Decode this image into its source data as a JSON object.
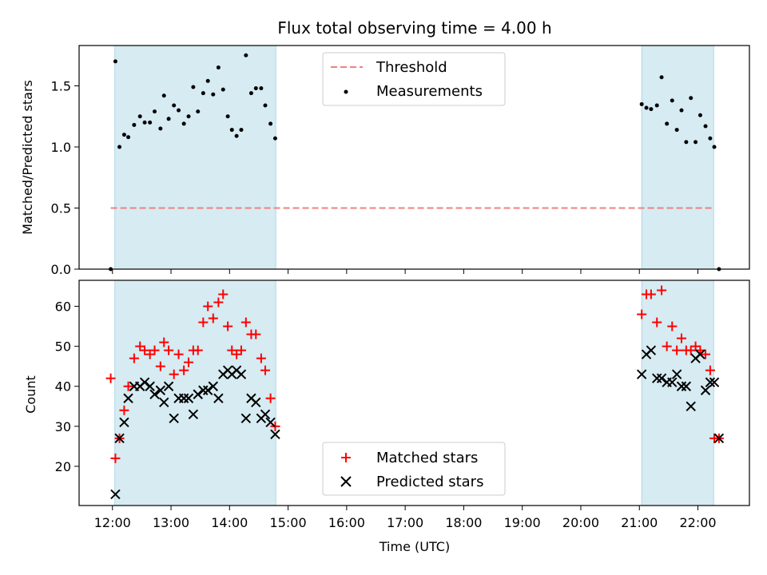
{
  "chart_data": [
    {
      "type": "scatter",
      "title": "Flux total observing time = 4.00 h",
      "ylabel": "Matched/Predicted stars",
      "ylim": [
        0,
        1.83
      ],
      "yticks": [
        "0.0",
        "0.5",
        "1.0",
        "1.5"
      ],
      "ytick_values": [
        0.0,
        0.5,
        1.0,
        1.5
      ],
      "shaded_spans": [
        [
          12.04,
          14.79
        ],
        [
          21.04,
          22.27
        ]
      ],
      "threshold": {
        "name": "Threshold",
        "value": 0.5,
        "x_range": [
          11.97,
          22.27
        ],
        "color": "#f08080"
      },
      "series": [
        {
          "name": "Measurements",
          "color": "#000000",
          "points": [
            [
              11.97,
              0.0
            ],
            [
              12.05,
              1.7
            ],
            [
              12.12,
              1.0
            ],
            [
              12.2,
              1.1
            ],
            [
              12.27,
              1.08
            ],
            [
              12.37,
              1.18
            ],
            [
              12.47,
              1.25
            ],
            [
              12.55,
              1.2
            ],
            [
              12.64,
              1.2
            ],
            [
              12.72,
              1.29
            ],
            [
              12.82,
              1.15
            ],
            [
              12.88,
              1.42
            ],
            [
              12.96,
              1.23
            ],
            [
              13.05,
              1.34
            ],
            [
              13.13,
              1.3
            ],
            [
              13.22,
              1.19
            ],
            [
              13.3,
              1.25
            ],
            [
              13.38,
              1.49
            ],
            [
              13.46,
              1.29
            ],
            [
              13.55,
              1.44
            ],
            [
              13.63,
              1.54
            ],
            [
              13.72,
              1.43
            ],
            [
              13.81,
              1.65
            ],
            [
              13.89,
              1.47
            ],
            [
              13.97,
              1.25
            ],
            [
              14.04,
              1.14
            ],
            [
              14.12,
              1.09
            ],
            [
              14.2,
              1.14
            ],
            [
              14.28,
              1.75
            ],
            [
              14.37,
              1.44
            ],
            [
              14.45,
              1.48
            ],
            [
              14.54,
              1.48
            ],
            [
              14.61,
              1.34
            ],
            [
              14.7,
              1.19
            ],
            [
              14.78,
              1.07
            ],
            [
              21.04,
              1.35
            ],
            [
              21.12,
              1.32
            ],
            [
              21.2,
              1.31
            ],
            [
              21.3,
              1.34
            ],
            [
              21.38,
              1.57
            ],
            [
              21.47,
              1.19
            ],
            [
              21.56,
              1.38
            ],
            [
              21.64,
              1.14
            ],
            [
              21.72,
              1.3
            ],
            [
              21.8,
              1.04
            ],
            [
              21.88,
              1.4
            ],
            [
              21.96,
              1.04
            ],
            [
              22.04,
              1.26
            ],
            [
              22.13,
              1.17
            ],
            [
              22.21,
              1.07
            ],
            [
              22.28,
              1.0
            ],
            [
              22.36,
              0.0
            ]
          ]
        }
      ]
    },
    {
      "type": "scatter",
      "xlabel": "Time (UTC)",
      "ylabel": "Count",
      "xlim": [
        11.43,
        22.88
      ],
      "ylim": [
        10.2,
        66.5
      ],
      "xticks": [
        "12:00",
        "13:00",
        "14:00",
        "15:00",
        "16:00",
        "17:00",
        "18:00",
        "19:00",
        "20:00",
        "21:00",
        "22:00"
      ],
      "xtick_values": [
        12,
        13,
        14,
        15,
        16,
        17,
        18,
        19,
        20,
        21,
        22
      ],
      "yticks": [
        "20",
        "30",
        "40",
        "50",
        "60"
      ],
      "ytick_values": [
        20,
        30,
        40,
        50,
        60
      ],
      "shaded_spans": [
        [
          12.04,
          14.79
        ],
        [
          21.04,
          22.27
        ]
      ],
      "series": [
        {
          "name": "Matched stars",
          "color": "#ff0000",
          "marker": "plus",
          "points": [
            [
              11.97,
              42
            ],
            [
              12.05,
              22
            ],
            [
              12.12,
              27
            ],
            [
              12.2,
              34
            ],
            [
              12.27,
              40
            ],
            [
              12.37,
              47
            ],
            [
              12.47,
              50
            ],
            [
              12.55,
              49
            ],
            [
              12.64,
              48
            ],
            [
              12.72,
              49
            ],
            [
              12.82,
              45
            ],
            [
              12.88,
              51
            ],
            [
              12.96,
              49
            ],
            [
              13.05,
              43
            ],
            [
              13.13,
              48
            ],
            [
              13.22,
              44
            ],
            [
              13.3,
              46
            ],
            [
              13.38,
              49
            ],
            [
              13.46,
              49
            ],
            [
              13.55,
              56
            ],
            [
              13.63,
              60
            ],
            [
              13.72,
              57
            ],
            [
              13.81,
              61
            ],
            [
              13.89,
              63
            ],
            [
              13.97,
              55
            ],
            [
              14.04,
              49
            ],
            [
              14.12,
              48
            ],
            [
              14.2,
              49
            ],
            [
              14.28,
              56
            ],
            [
              14.37,
              53
            ],
            [
              14.45,
              53
            ],
            [
              14.54,
              47
            ],
            [
              14.61,
              44
            ],
            [
              14.7,
              37
            ],
            [
              14.78,
              30
            ],
            [
              21.04,
              58
            ],
            [
              21.12,
              63
            ],
            [
              21.2,
              63
            ],
            [
              21.3,
              56
            ],
            [
              21.38,
              64
            ],
            [
              21.47,
              50
            ],
            [
              21.56,
              55
            ],
            [
              21.64,
              49
            ],
            [
              21.72,
              52
            ],
            [
              21.8,
              49
            ],
            [
              21.88,
              49
            ],
            [
              21.96,
              50
            ],
            [
              22.04,
              49
            ],
            [
              22.13,
              48
            ],
            [
              22.21,
              44
            ],
            [
              22.28,
              27
            ],
            [
              22.36,
              27
            ]
          ]
        },
        {
          "name": "Predicted stars",
          "color": "#000000",
          "marker": "x",
          "points": [
            [
              12.05,
              13
            ],
            [
              12.12,
              27
            ],
            [
              12.2,
              31
            ],
            [
              12.27,
              37
            ],
            [
              12.37,
              40
            ],
            [
              12.47,
              40
            ],
            [
              12.55,
              41
            ],
            [
              12.64,
              40
            ],
            [
              12.72,
              38
            ],
            [
              12.82,
              39
            ],
            [
              12.88,
              36
            ],
            [
              12.96,
              40
            ],
            [
              13.05,
              32
            ],
            [
              13.13,
              37
            ],
            [
              13.22,
              37
            ],
            [
              13.3,
              37
            ],
            [
              13.38,
              33
            ],
            [
              13.46,
              38
            ],
            [
              13.55,
              39
            ],
            [
              13.63,
              39
            ],
            [
              13.72,
              40
            ],
            [
              13.81,
              37
            ],
            [
              13.89,
              43
            ],
            [
              13.97,
              44
            ],
            [
              14.04,
              43
            ],
            [
              14.12,
              44
            ],
            [
              14.2,
              43
            ],
            [
              14.28,
              32
            ],
            [
              14.37,
              37
            ],
            [
              14.45,
              36
            ],
            [
              14.54,
              32
            ],
            [
              14.61,
              33
            ],
            [
              14.7,
              31
            ],
            [
              14.78,
              28
            ],
            [
              21.04,
              43
            ],
            [
              21.12,
              48
            ],
            [
              21.2,
              49
            ],
            [
              21.3,
              42
            ],
            [
              21.38,
              42
            ],
            [
              21.47,
              41
            ],
            [
              21.56,
              41
            ],
            [
              21.64,
              43
            ],
            [
              21.72,
              40
            ],
            [
              21.8,
              40
            ],
            [
              21.88,
              35
            ],
            [
              21.96,
              47
            ],
            [
              22.04,
              48
            ],
            [
              22.13,
              39
            ],
            [
              22.21,
              41
            ],
            [
              22.28,
              41
            ],
            [
              22.36,
              27
            ]
          ]
        }
      ]
    }
  ]
}
